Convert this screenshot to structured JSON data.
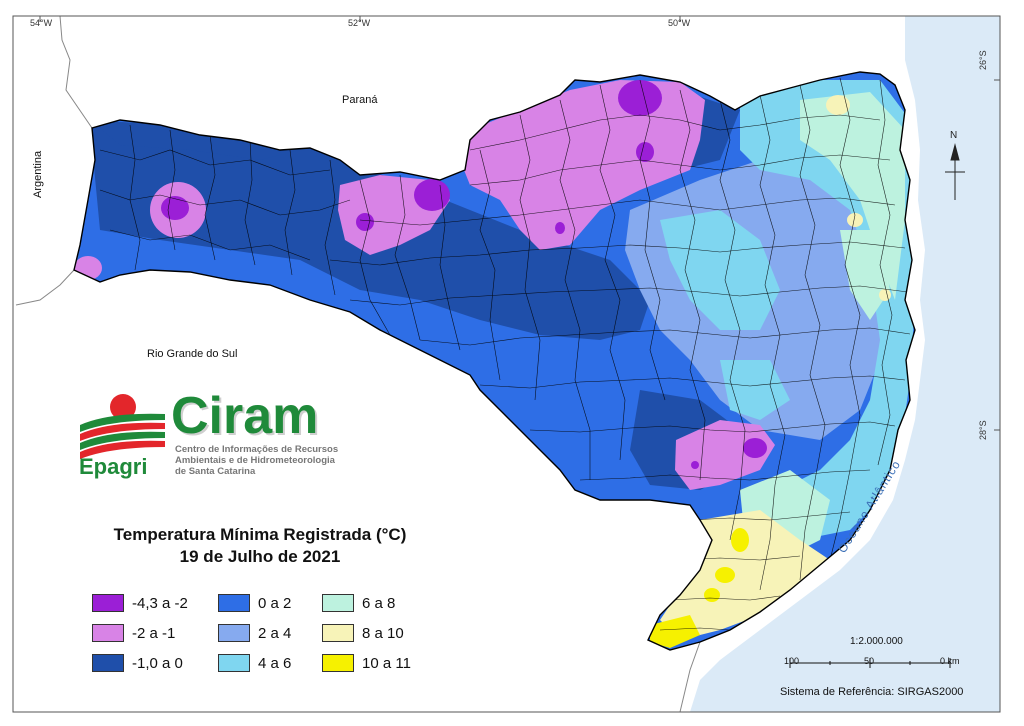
{
  "graticule": {
    "top": [
      "54°W",
      "52°W",
      "50°W"
    ],
    "right": [
      "26°S",
      "28°S"
    ]
  },
  "places": {
    "parana": "Paraná",
    "argentina": "Argentina",
    "rio_grande": "Rio Grande do Sul",
    "ocean": "Oceano Atlântico"
  },
  "logo": {
    "word": "Ciram",
    "brand": "Epagri",
    "subtitle": [
      "Centro de Informações de Recursos",
      "Ambientais e de Hidrometeorologia",
      "de Santa Catarina"
    ]
  },
  "title": {
    "line1": "Temperatura Mínima Registrada (°C)",
    "line2": "19 de Julho de 2021"
  },
  "legend": [
    {
      "label": "-4,3 a -2",
      "color": "#9b1fd6"
    },
    {
      "label": "-2 a -1",
      "color": "#d883e6"
    },
    {
      "label": "-1,0 a 0",
      "color": "#1f4faa"
    },
    {
      "label": "0 a 2",
      "color": "#2e6ee6"
    },
    {
      "label": "2 a 4",
      "color": "#86aaef"
    },
    {
      "label": "4 a 6",
      "color": "#7fd6f0"
    },
    {
      "label": "6 a 8",
      "color": "#bdf2df"
    },
    {
      "label": "8 a 10",
      "color": "#f7f3b8"
    },
    {
      "label": "10 a 11",
      "color": "#f6f100"
    }
  ],
  "scale": {
    "ratio": "1:2.000.000",
    "ticks": [
      "100",
      "50",
      "0 km"
    ],
    "reference": "Sistema de Referência: SIRGAS2000"
  },
  "north": "N",
  "colors": {
    "ocean": "#dbeaf7",
    "land": "#ffffff",
    "border": "#000000"
  }
}
